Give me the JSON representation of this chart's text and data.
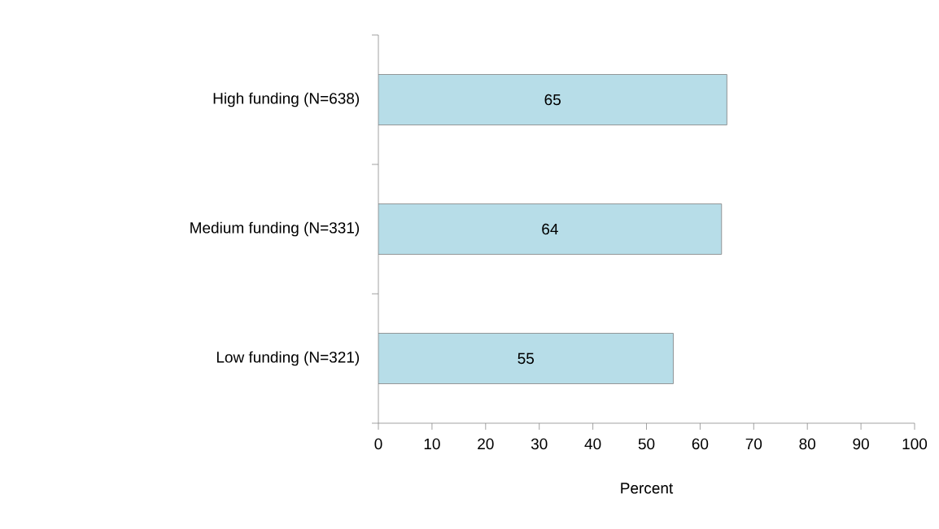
{
  "chart_data": {
    "type": "bar",
    "orientation": "horizontal",
    "xlabel": "Percent",
    "categories": [
      "High funding (N=638)",
      "Medium funding (N=331)",
      "Low funding (N=321)"
    ],
    "values": [
      65,
      64,
      55
    ],
    "color": "#b7dde8",
    "data_labels": true,
    "xlim": [
      0,
      100
    ],
    "xticks": [
      0,
      10,
      20,
      30,
      40,
      50,
      60,
      70,
      80,
      90,
      100
    ],
    "grid": false
  }
}
